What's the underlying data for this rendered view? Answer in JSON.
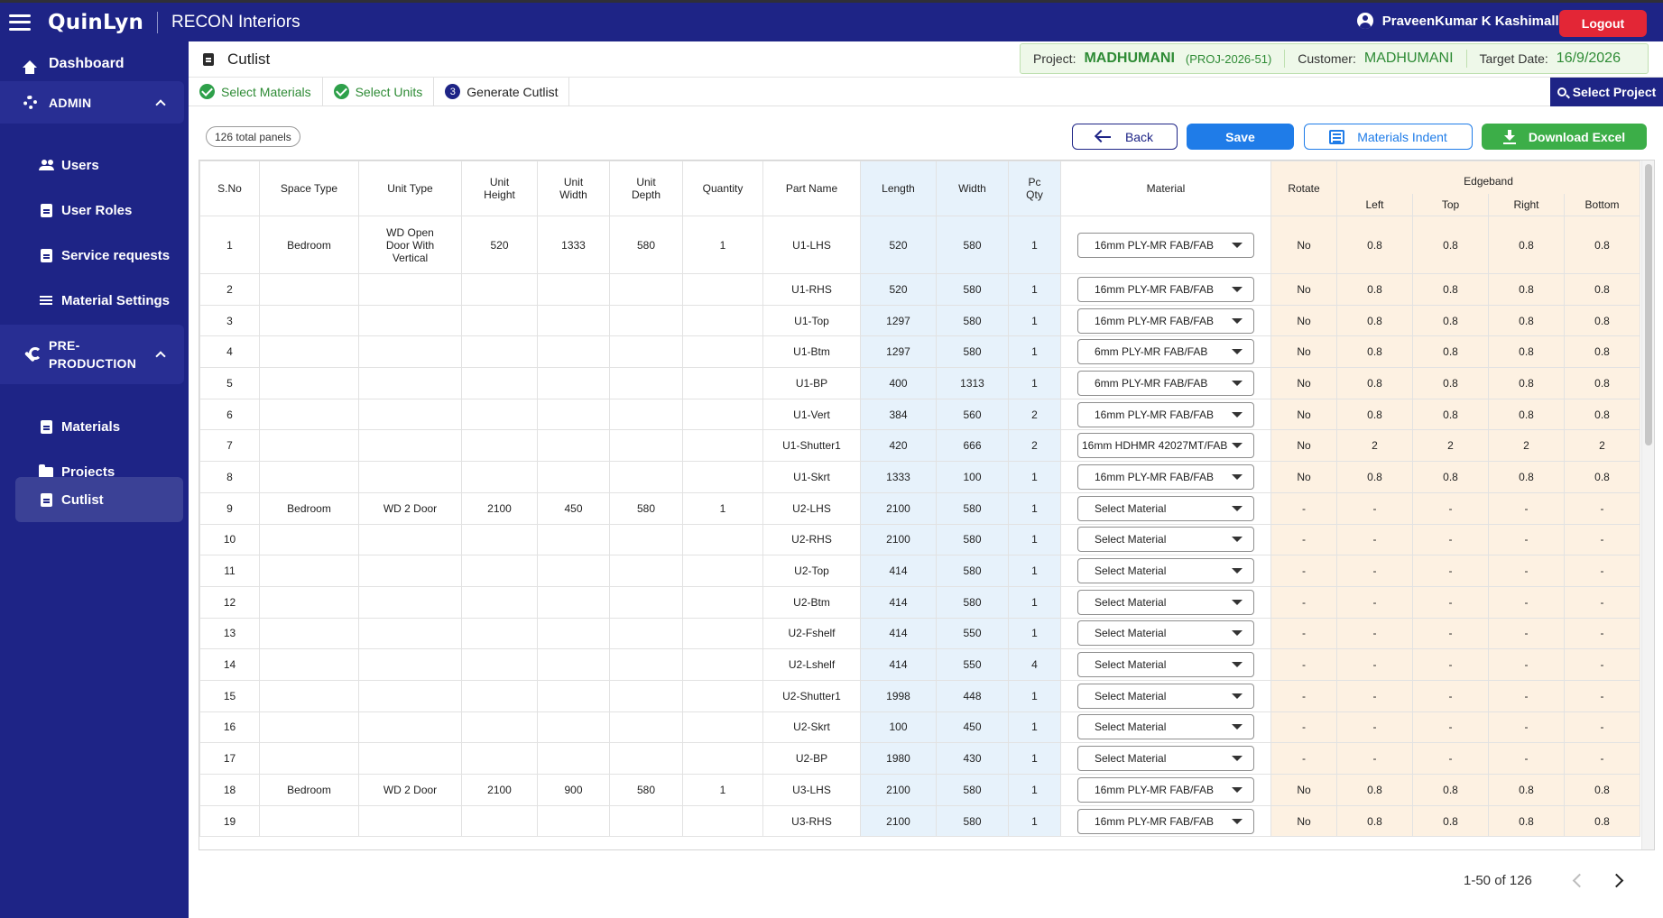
{
  "app": {
    "brand": "QuinLyn",
    "company": "RECON Interiors"
  },
  "user": {
    "name": "PraveenKumar K Kashimalla",
    "logout_label": "Logout"
  },
  "sidebar": {
    "dashboard": "Dashboard",
    "admin_section": "ADMIN",
    "admin_items": [
      "Users",
      "User Roles",
      "Service requests",
      "Material Settings"
    ],
    "preprod_section_line1": "PRE-",
    "preprod_section_line2": "PRODUCTION",
    "preprod_items": [
      "Materials",
      "Projects",
      "Cutlist"
    ]
  },
  "header": {
    "title": "Cutlist",
    "project_label": "Project:",
    "project_name": "MADHUMANI",
    "project_code": "(PROJ-2026-51)",
    "customer_label": "Customer:",
    "customer_name": "MADHUMANI",
    "target_label": "Target Date:",
    "target_date": "16/9/2026"
  },
  "steps": {
    "step1": "Select Materials",
    "step2": "Select Units",
    "step3_num": "3",
    "step3": "Generate Cutlist",
    "select_project": "Select Project"
  },
  "toolbar": {
    "panels_count": "126 total panels",
    "back": "Back",
    "save": "Save",
    "indent": "Materials Indent",
    "excel": "Download Excel"
  },
  "table": {
    "headers": {
      "sno": "S.No",
      "space_type": "Space Type",
      "unit_type": "Unit Type",
      "unit_height_1": "Unit",
      "unit_height_2": "Height",
      "unit_width_1": "Unit",
      "unit_width_2": "Width",
      "unit_depth_1": "Unit",
      "unit_depth_2": "Depth",
      "quantity": "Quantity",
      "part_name": "Part Name",
      "length": "Length",
      "width": "Width",
      "pc_qty_1": "Pc",
      "pc_qty_2": "Qty",
      "material": "Material",
      "rotate": "Rotate",
      "edgeband": "Edgeband",
      "eb_left": "Left",
      "eb_top": "Top",
      "eb_right": "Right",
      "eb_bottom": "Bottom"
    },
    "rows": [
      {
        "sno": "1",
        "space": "Bedroom",
        "unit": "WD Open Door With Vertical",
        "uh": "520",
        "uw": "1333",
        "ud": "580",
        "qty": "1",
        "part": "U1-LHS",
        "len": "520",
        "wid": "580",
        "pc": "1",
        "mat": "16mm PLY-MR FAB/FAB",
        "rot": "No",
        "l": "0.8",
        "t": "0.8",
        "r": "0.8",
        "b": "0.8"
      },
      {
        "sno": "2",
        "space": "",
        "unit": "",
        "uh": "",
        "uw": "",
        "ud": "",
        "qty": "",
        "part": "U1-RHS",
        "len": "520",
        "wid": "580",
        "pc": "1",
        "mat": "16mm PLY-MR FAB/FAB",
        "rot": "No",
        "l": "0.8",
        "t": "0.8",
        "r": "0.8",
        "b": "0.8"
      },
      {
        "sno": "3",
        "space": "",
        "unit": "",
        "uh": "",
        "uw": "",
        "ud": "",
        "qty": "",
        "part": "U1-Top",
        "len": "1297",
        "wid": "580",
        "pc": "1",
        "mat": "16mm PLY-MR FAB/FAB",
        "rot": "No",
        "l": "0.8",
        "t": "0.8",
        "r": "0.8",
        "b": "0.8"
      },
      {
        "sno": "4",
        "space": "",
        "unit": "",
        "uh": "",
        "uw": "",
        "ud": "",
        "qty": "",
        "part": "U1-Btm",
        "len": "1297",
        "wid": "580",
        "pc": "1",
        "mat": "6mm PLY-MR FAB/FAB",
        "rot": "No",
        "l": "0.8",
        "t": "0.8",
        "r": "0.8",
        "b": "0.8"
      },
      {
        "sno": "5",
        "space": "",
        "unit": "",
        "uh": "",
        "uw": "",
        "ud": "",
        "qty": "",
        "part": "U1-BP",
        "len": "400",
        "wid": "1313",
        "pc": "1",
        "mat": "6mm PLY-MR FAB/FAB",
        "rot": "No",
        "l": "0.8",
        "t": "0.8",
        "r": "0.8",
        "b": "0.8"
      },
      {
        "sno": "6",
        "space": "",
        "unit": "",
        "uh": "",
        "uw": "",
        "ud": "",
        "qty": "",
        "part": "U1-Vert",
        "len": "384",
        "wid": "560",
        "pc": "2",
        "mat": "16mm PLY-MR FAB/FAB",
        "rot": "No",
        "l": "0.8",
        "t": "0.8",
        "r": "0.8",
        "b": "0.8"
      },
      {
        "sno": "7",
        "space": "",
        "unit": "",
        "uh": "",
        "uw": "",
        "ud": "",
        "qty": "",
        "part": "U1-Shutter1",
        "len": "420",
        "wid": "666",
        "pc": "2",
        "mat": "16mm HDHMR 42027MT/FAB",
        "rot": "No",
        "l": "2",
        "t": "2",
        "r": "2",
        "b": "2"
      },
      {
        "sno": "8",
        "space": "",
        "unit": "",
        "uh": "",
        "uw": "",
        "ud": "",
        "qty": "",
        "part": "U1-Skrt",
        "len": "1333",
        "wid": "100",
        "pc": "1",
        "mat": "16mm PLY-MR FAB/FAB",
        "rot": "No",
        "l": "0.8",
        "t": "0.8",
        "r": "0.8",
        "b": "0.8"
      },
      {
        "sno": "9",
        "space": "Bedroom",
        "unit": "WD 2 Door",
        "uh": "2100",
        "uw": "450",
        "ud": "580",
        "qty": "1",
        "part": "U2-LHS",
        "len": "2100",
        "wid": "580",
        "pc": "1",
        "mat": "Select Material",
        "rot": "-",
        "l": "-",
        "t": "-",
        "r": "-",
        "b": "-"
      },
      {
        "sno": "10",
        "space": "",
        "unit": "",
        "uh": "",
        "uw": "",
        "ud": "",
        "qty": "",
        "part": "U2-RHS",
        "len": "2100",
        "wid": "580",
        "pc": "1",
        "mat": "Select Material",
        "rot": "-",
        "l": "-",
        "t": "-",
        "r": "-",
        "b": "-"
      },
      {
        "sno": "11",
        "space": "",
        "unit": "",
        "uh": "",
        "uw": "",
        "ud": "",
        "qty": "",
        "part": "U2-Top",
        "len": "414",
        "wid": "580",
        "pc": "1",
        "mat": "Select Material",
        "rot": "-",
        "l": "-",
        "t": "-",
        "r": "-",
        "b": "-"
      },
      {
        "sno": "12",
        "space": "",
        "unit": "",
        "uh": "",
        "uw": "",
        "ud": "",
        "qty": "",
        "part": "U2-Btm",
        "len": "414",
        "wid": "580",
        "pc": "1",
        "mat": "Select Material",
        "rot": "-",
        "l": "-",
        "t": "-",
        "r": "-",
        "b": "-"
      },
      {
        "sno": "13",
        "space": "",
        "unit": "",
        "uh": "",
        "uw": "",
        "ud": "",
        "qty": "",
        "part": "U2-Fshelf",
        "len": "414",
        "wid": "550",
        "pc": "1",
        "mat": "Select Material",
        "rot": "-",
        "l": "-",
        "t": "-",
        "r": "-",
        "b": "-"
      },
      {
        "sno": "14",
        "space": "",
        "unit": "",
        "uh": "",
        "uw": "",
        "ud": "",
        "qty": "",
        "part": "U2-Lshelf",
        "len": "414",
        "wid": "550",
        "pc": "4",
        "mat": "Select Material",
        "rot": "-",
        "l": "-",
        "t": "-",
        "r": "-",
        "b": "-"
      },
      {
        "sno": "15",
        "space": "",
        "unit": "",
        "uh": "",
        "uw": "",
        "ud": "",
        "qty": "",
        "part": "U2-Shutter1",
        "len": "1998",
        "wid": "448",
        "pc": "1",
        "mat": "Select Material",
        "rot": "-",
        "l": "-",
        "t": "-",
        "r": "-",
        "b": "-"
      },
      {
        "sno": "16",
        "space": "",
        "unit": "",
        "uh": "",
        "uw": "",
        "ud": "",
        "qty": "",
        "part": "U2-Skrt",
        "len": "100",
        "wid": "450",
        "pc": "1",
        "mat": "Select Material",
        "rot": "-",
        "l": "-",
        "t": "-",
        "r": "-",
        "b": "-"
      },
      {
        "sno": "17",
        "space": "",
        "unit": "",
        "uh": "",
        "uw": "",
        "ud": "",
        "qty": "",
        "part": "U2-BP",
        "len": "1980",
        "wid": "430",
        "pc": "1",
        "mat": "Select Material",
        "rot": "-",
        "l": "-",
        "t": "-",
        "r": "-",
        "b": "-"
      },
      {
        "sno": "18",
        "space": "Bedroom",
        "unit": "WD 2 Door",
        "uh": "2100",
        "uw": "900",
        "ud": "580",
        "qty": "1",
        "part": "U3-LHS",
        "len": "2100",
        "wid": "580",
        "pc": "1",
        "mat": "16mm PLY-MR FAB/FAB",
        "rot": "No",
        "l": "0.8",
        "t": "0.8",
        "r": "0.8",
        "b": "0.8"
      },
      {
        "sno": "19",
        "space": "",
        "unit": "",
        "uh": "",
        "uw": "",
        "ud": "",
        "qty": "",
        "part": "U3-RHS",
        "len": "2100",
        "wid": "580",
        "pc": "1",
        "mat": "16mm PLY-MR FAB/FAB",
        "rot": "No",
        "l": "0.8",
        "t": "0.8",
        "r": "0.8",
        "b": "0.8"
      }
    ]
  },
  "pagination": {
    "range": "1-50 of 126"
  },
  "colors": {
    "navy": "#1e2486",
    "accent_blue": "#1f7ce8",
    "green": "#3cae48",
    "red": "#e32636",
    "dim_col_bg": "#e7f2fb",
    "edge_col_bg": "#fdf1e2"
  }
}
